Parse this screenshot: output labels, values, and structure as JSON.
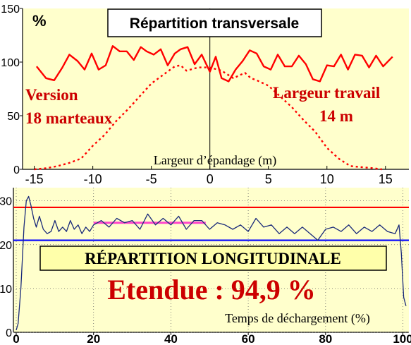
{
  "colors": {
    "panel_bg": "#ffffcc",
    "red": "#ff0000",
    "dark_red": "#cc0000",
    "navy": "#1a2a7a",
    "blue": "#0000ff",
    "magenta": "#ff44cc",
    "box_yellow": "#ffffaa"
  },
  "chart_data": [
    {
      "type": "line",
      "title": "Répartition transversale",
      "ylabel": "%",
      "xlabel": "Largeur d’épandage (m)",
      "xlim": [
        -16,
        17
      ],
      "ylim": [
        0,
        150
      ],
      "x_ticks": [
        -15,
        -10,
        -5,
        0,
        5,
        10,
        15
      ],
      "y_ticks": [
        0,
        50,
        100,
        150
      ],
      "annotations": [
        "Version",
        "18 marteaux",
        "Largeur travail",
        "14 m"
      ],
      "series": [
        {
          "style": "solid",
          "x": [
            -14.8,
            -14.0,
            -13.3,
            -12.6,
            -12.0,
            -11.3,
            -10.7,
            -10.1,
            -9.5,
            -8.9,
            -8.3,
            -7.7,
            -7.1,
            -6.5,
            -5.9,
            -5.4,
            -4.8,
            -4.2,
            -3.6,
            -3.0,
            -2.5,
            -1.9,
            -1.3,
            -0.7,
            0.0,
            0.5,
            1.0,
            1.6,
            2.2,
            2.8,
            3.4,
            4.0,
            4.6,
            5.2,
            5.8,
            6.4,
            7.0,
            7.6,
            8.2,
            8.8,
            9.4,
            10.0,
            10.6,
            11.2,
            11.8,
            12.4,
            13.0,
            13.6,
            14.2,
            14.8,
            15.6
          ],
          "y": [
            96,
            85,
            83,
            95,
            107,
            101,
            93,
            108,
            93,
            97,
            115,
            110,
            110,
            102,
            114,
            110,
            107,
            112,
            97,
            108,
            112,
            114,
            98,
            107,
            91,
            105,
            85,
            82,
            93,
            101,
            111,
            108,
            96,
            93,
            107,
            96,
            96,
            106,
            98,
            84,
            82,
            97,
            96,
            107,
            93,
            107,
            106,
            95,
            106,
            96,
            105
          ]
        },
        {
          "style": "dotted",
          "x": [
            -15.0,
            -14.0,
            -13.0,
            -12.0,
            -11.0,
            -10.0,
            -9.0,
            -8.0,
            -7.0,
            -6.0,
            -5.0,
            -4.0,
            -3.0,
            -2.5,
            -2.0,
            -1.0,
            0.0,
            1.0,
            2.0,
            3.0,
            3.5,
            4.0,
            5.0,
            6.0,
            7.0,
            8.0,
            9.0,
            10.0,
            11.0,
            12.0,
            13.0,
            14.0,
            14.7
          ],
          "y": [
            0,
            1,
            3,
            6,
            10,
            22,
            32,
            45,
            56,
            68,
            80,
            88,
            96,
            97,
            92,
            95,
            95,
            92,
            85,
            90,
            85,
            83,
            78,
            68,
            58,
            46,
            35,
            20,
            10,
            3,
            2,
            1,
            0
          ]
        }
      ]
    },
    {
      "type": "line",
      "title": "RÉPARTITION LONGITUDINALE",
      "subtitle": "Etendue : 94,9 %",
      "xlabel": "Temps de déchargement (%)",
      "xlim": [
        0,
        101
      ],
      "ylim": [
        0,
        33
      ],
      "x_ticks": [
        0,
        20,
        40,
        60,
        80,
        100
      ],
      "y_ticks": [
        0,
        10,
        20,
        30
      ],
      "reference_lines": [
        {
          "y": 28.5,
          "color": "red"
        },
        {
          "y": 21.0,
          "color": "blue"
        },
        {
          "y": 25.0,
          "x_from": 20,
          "x_to": 49,
          "color": "magenta"
        }
      ],
      "series": [
        {
          "x": [
            0.0,
            0.5,
            1.2,
            2.0,
            2.6,
            3.2,
            3.8,
            4.5,
            5.2,
            6.0,
            7.0,
            8.0,
            9.0,
            10.0,
            11.0,
            12.0,
            13.0,
            14.0,
            15.0,
            16.0,
            17.0,
            18.0,
            19.0,
            20.0,
            22.0,
            24.0,
            26.0,
            28.0,
            30.0,
            32.0,
            34.0,
            36.0,
            38.0,
            40.0,
            42.0,
            44.0,
            46.0,
            48.0,
            50.0,
            52.0,
            54.0,
            56.0,
            58.0,
            60.0,
            62.0,
            64.0,
            66.0,
            68.0,
            70.0,
            72.0,
            74.0,
            76.0,
            78.0,
            80.0,
            82.0,
            84.0,
            86.0,
            88.0,
            90.0,
            92.0,
            94.0,
            96.0,
            98.0,
            99.0,
            99.6,
            100.2,
            100.8
          ],
          "y": [
            0.5,
            2.0,
            10.0,
            24.0,
            30.0,
            31.0,
            29.0,
            26.0,
            24.0,
            26.5,
            23.5,
            22.5,
            23.0,
            25.5,
            23.0,
            24.0,
            23.0,
            25.5,
            23.5,
            24.5,
            22.5,
            24.0,
            23.0,
            24.5,
            25.5,
            24.0,
            26.0,
            25.0,
            25.5,
            23.5,
            27.0,
            24.5,
            26.0,
            24.5,
            26.5,
            23.5,
            25.5,
            25.5,
            23.5,
            25.0,
            24.5,
            23.5,
            24.5,
            23.0,
            26.0,
            24.0,
            24.5,
            22.5,
            24.0,
            22.5,
            24.0,
            22.5,
            21.0,
            23.5,
            24.0,
            23.0,
            24.5,
            22.5,
            24.0,
            23.0,
            24.5,
            23.0,
            22.5,
            24.5,
            18.0,
            8.0,
            6.0
          ]
        }
      ]
    }
  ]
}
